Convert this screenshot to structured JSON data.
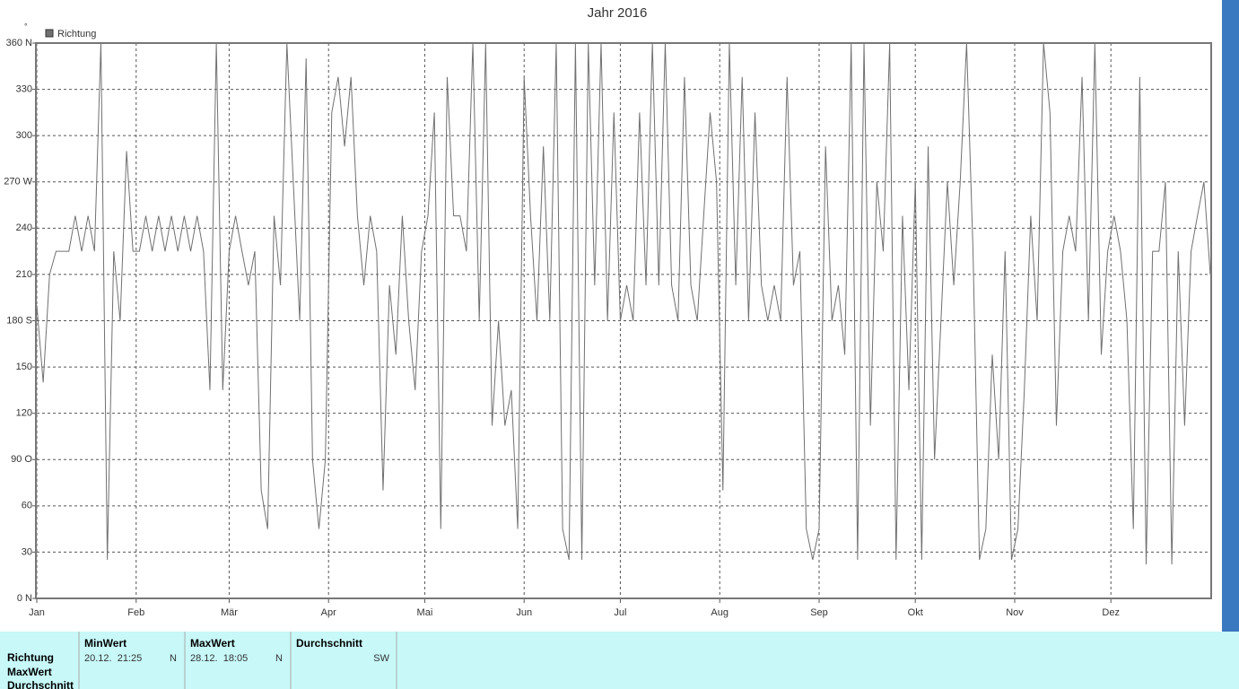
{
  "chart_data": {
    "type": "line",
    "title": "Jahr 2016",
    "y_unit": "°",
    "series": [
      {
        "name": "Richtung",
        "color": "#707070",
        "x": [
          0,
          2,
          4,
          6,
          8,
          10,
          12,
          14,
          16,
          18,
          20,
          22,
          24,
          26,
          28,
          30,
          32,
          34,
          36,
          38,
          40,
          42,
          44,
          46,
          48,
          50,
          52,
          54,
          56,
          58,
          60,
          62,
          64,
          66,
          68,
          70,
          72,
          74,
          76,
          78,
          80,
          82,
          84,
          86,
          88,
          90,
          92,
          94,
          96,
          98,
          100,
          102,
          104,
          106,
          108,
          110,
          112,
          114,
          116,
          118,
          120,
          122,
          124,
          126,
          128,
          130,
          132,
          134,
          136,
          138,
          140,
          142,
          144,
          146,
          148,
          150,
          152,
          154,
          156,
          158,
          160,
          162,
          164,
          166,
          168,
          170,
          172,
          174,
          176,
          178,
          180,
          182,
          184,
          186,
          188,
          190,
          192,
          194,
          196,
          198,
          200,
          202,
          204,
          206,
          208,
          210,
          212,
          214,
          216,
          218,
          220,
          222,
          224,
          226,
          228,
          230,
          232,
          234,
          236,
          238,
          240,
          242,
          244,
          246,
          248,
          250,
          252,
          254,
          256,
          258,
          260,
          262,
          264,
          266,
          268,
          270,
          272,
          274,
          276,
          278,
          280,
          282,
          284,
          286,
          288,
          290,
          292,
          294,
          296,
          298,
          300,
          302,
          304,
          306,
          308,
          310,
          312,
          314,
          316,
          318,
          320,
          322,
          324,
          326,
          328,
          330,
          332,
          334,
          336,
          338,
          340,
          342,
          344,
          346,
          348,
          350,
          352,
          354,
          356,
          358,
          360,
          362,
          364,
          366
        ],
        "values": [
          190,
          140,
          210,
          225,
          225,
          225,
          248,
          225,
          248,
          225,
          360,
          25,
          225,
          180,
          290,
          225,
          225,
          248,
          225,
          248,
          225,
          248,
          225,
          248,
          225,
          248,
          225,
          135,
          360,
          135,
          225,
          248,
          225,
          203,
          225,
          70,
          45,
          248,
          203,
          360,
          270,
          180,
          350,
          90,
          45,
          90,
          315,
          338,
          293,
          338,
          248,
          203,
          248,
          225,
          70,
          203,
          158,
          248,
          180,
          135,
          225,
          248,
          315,
          45,
          338,
          248,
          248,
          225,
          360,
          180,
          360,
          112,
          180,
          112,
          135,
          45,
          338,
          248,
          180,
          293,
          180,
          360,
          45,
          25,
          360,
          25,
          360,
          203,
          360,
          180,
          315,
          180,
          203,
          180,
          315,
          203,
          360,
          203,
          360,
          203,
          180,
          338,
          203,
          180,
          248,
          315,
          270,
          70,
          360,
          203,
          338,
          180,
          315,
          203,
          180,
          203,
          180,
          338,
          203,
          225,
          45,
          25,
          45,
          293,
          180,
          203,
          158,
          360,
          25,
          360,
          112,
          270,
          225,
          360,
          25,
          248,
          135,
          270,
          25,
          293,
          90,
          180,
          270,
          203,
          270,
          360,
          225,
          25,
          45,
          158,
          90,
          225,
          25,
          45,
          135,
          248,
          180,
          360,
          315,
          112,
          225,
          248,
          225,
          338,
          180,
          360,
          158,
          225,
          248,
          225,
          180,
          45,
          338,
          22,
          225,
          225,
          270,
          22,
          225,
          112,
          225,
          248,
          270,
          210
        ]
      }
    ],
    "xlim": [
      0,
      366
    ],
    "xticks": [
      {
        "value": 0,
        "label": "Jan"
      },
      {
        "value": 31,
        "label": "Feb"
      },
      {
        "value": 60,
        "label": "Mär"
      },
      {
        "value": 91,
        "label": "Apr"
      },
      {
        "value": 121,
        "label": "Mai"
      },
      {
        "value": 152,
        "label": "Jun"
      },
      {
        "value": 182,
        "label": "Jul"
      },
      {
        "value": 213,
        "label": "Aug"
      },
      {
        "value": 244,
        "label": "Sep"
      },
      {
        "value": 274,
        "label": "Okt"
      },
      {
        "value": 305,
        "label": "Nov"
      },
      {
        "value": 335,
        "label": "Dez"
      }
    ],
    "ylim": [
      0,
      360
    ],
    "yticks": [
      {
        "value": 0,
        "label": "0 N"
      },
      30,
      60,
      {
        "value": 90,
        "label": "90 O"
      },
      120,
      150,
      {
        "value": 180,
        "label": "180 S"
      },
      210,
      240,
      {
        "value": 270,
        "label": "270 W"
      },
      300,
      330,
      {
        "value": 360,
        "label": "360 N"
      }
    ],
    "grid": true
  },
  "table": {
    "headers": [
      "MinWert",
      "MaxWert",
      "Durchschnitt"
    ],
    "row_labels": [
      "Richtung",
      "MaxWert",
      "Durchschnitt"
    ],
    "cells": [
      {
        "time": "20.12.  21:25",
        "dir": "N"
      },
      {
        "time": "28.12.  18:05",
        "dir": "N"
      },
      {
        "dir": "SW"
      }
    ]
  }
}
